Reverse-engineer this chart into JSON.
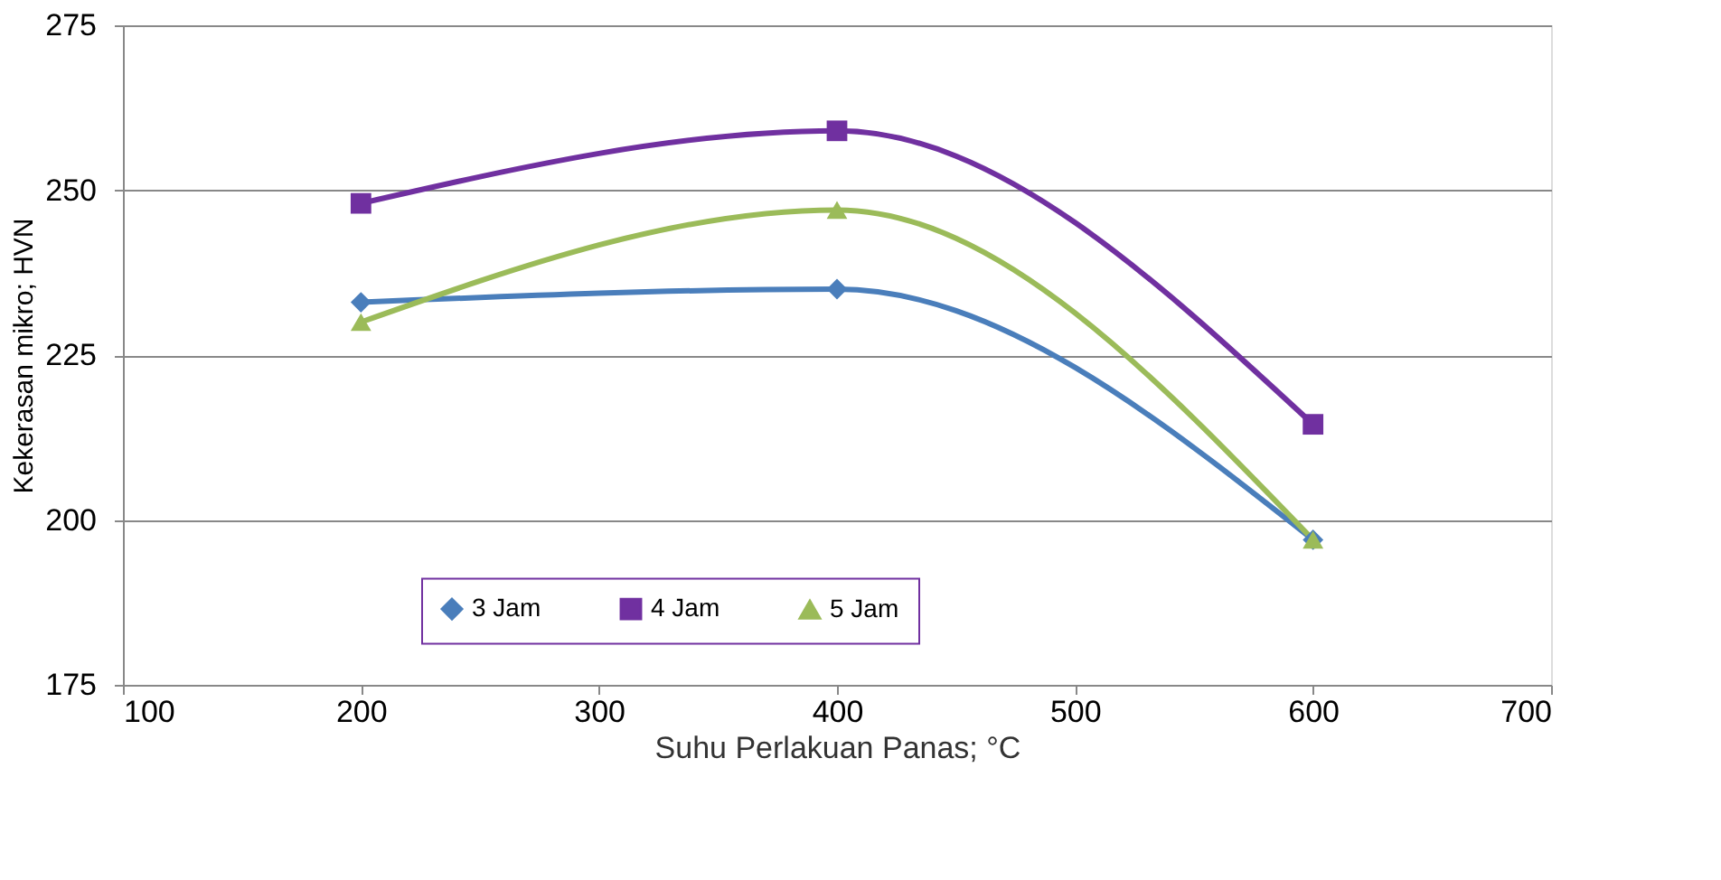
{
  "chart_data": {
    "type": "line",
    "xlabel": "Suhu Perlakuan Panas; °C",
    "ylabel": "Kekerasan mikro; HVN",
    "x": [
      200,
      400,
      600
    ],
    "series": [
      {
        "name": "3 Jam",
        "color": "#4a7ebb",
        "marker": "diamond",
        "values": [
          233,
          235,
          197
        ]
      },
      {
        "name": "4 Jam",
        "color": "#7030a0",
        "marker": "square",
        "values": [
          248,
          259,
          214.5
        ]
      },
      {
        "name": "5 Jam",
        "color": "#9bbb59",
        "marker": "triangle",
        "values": [
          230,
          247,
          197
        ]
      }
    ],
    "xlim": [
      100,
      700
    ],
    "xticks": [
      100,
      200,
      300,
      400,
      500,
      600,
      700
    ],
    "ylim": [
      175,
      275
    ],
    "yticks": [
      175,
      200,
      225,
      250,
      275
    ],
    "grid": "y",
    "legend": "bottom"
  }
}
